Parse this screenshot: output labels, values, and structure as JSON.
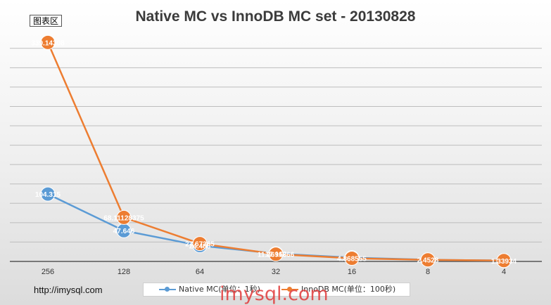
{
  "badge": "图表区",
  "site": "http://imysql.com",
  "watermark": "imysql.com",
  "colors": {
    "native": "#5b9bd5",
    "innodb": "#ed7d31"
  },
  "chart_data": {
    "type": "line",
    "title": "Native MC vs InnoDB MC set - 20130828",
    "categories": [
      "256",
      "128",
      "64",
      "32",
      "16",
      "8",
      "4"
    ],
    "ylim": [
      0,
      345
    ],
    "grid": true,
    "legend_position": "bottom",
    "series": [
      {
        "name": "Native MC(单位：1秒)",
        "color": "#5b9bd5",
        "values": [
          104.315,
          47.646,
          24.486,
          12.162,
          5.85,
          2.54,
          1.3
        ],
        "labels": [
          "104.315",
          "47.646",
          "24.486",
          "12.162",
          "",
          "",
          ""
        ]
      },
      {
        "name": "InnoDB MC(单位：100秒)",
        "color": "#ed7d31",
        "values": [
          339.14308,
          68.11128375,
          27.67265,
          11.2691866,
          4.868555,
          2.4528,
          1.33934
        ],
        "labels": [
          "339.14308",
          "68.11128375",
          "27.67265",
          "11.2691866",
          "4.868555",
          "2.4528",
          "1.33934"
        ]
      }
    ]
  }
}
